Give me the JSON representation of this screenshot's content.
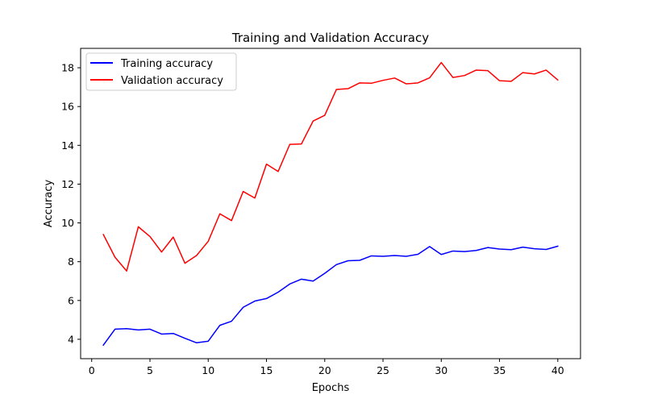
{
  "chart_data": {
    "type": "line",
    "title": "Training and Validation Accuracy",
    "xlabel": "Epochs",
    "ylabel": "Accuracy",
    "xlim": [
      -0.95,
      41.95
    ],
    "ylim": [
      3.0,
      19.0
    ],
    "xticks": [
      0,
      5,
      10,
      15,
      20,
      25,
      30,
      35,
      40
    ],
    "yticks": [
      4,
      6,
      8,
      10,
      12,
      14,
      16,
      18
    ],
    "grid": false,
    "legend_position": "top-left",
    "x": [
      1,
      2,
      3,
      4,
      5,
      6,
      7,
      8,
      9,
      10,
      11,
      12,
      13,
      14,
      15,
      16,
      17,
      18,
      19,
      20,
      21,
      22,
      23,
      24,
      25,
      26,
      27,
      28,
      29,
      30,
      31,
      32,
      33,
      34,
      35,
      36,
      37,
      38,
      39,
      40
    ],
    "series": [
      {
        "name": "Training accuracy",
        "color": "#0000ff",
        "values": [
          3.7,
          4.52,
          4.55,
          4.48,
          4.52,
          4.27,
          4.3,
          4.05,
          3.82,
          3.9,
          4.72,
          4.93,
          5.65,
          5.97,
          6.1,
          6.43,
          6.85,
          7.1,
          7.0,
          7.4,
          7.85,
          8.05,
          8.07,
          8.3,
          8.28,
          8.32,
          8.28,
          8.38,
          8.78,
          8.37,
          8.55,
          8.52,
          8.58,
          8.73,
          8.65,
          8.62,
          8.75,
          8.67,
          8.63,
          8.8
        ]
      },
      {
        "name": "Validation accuracy",
        "color": "#ff0000",
        "values": [
          9.4,
          8.23,
          7.52,
          9.8,
          9.3,
          8.5,
          9.27,
          7.92,
          8.32,
          9.05,
          10.47,
          10.12,
          11.62,
          11.28,
          13.03,
          12.65,
          14.05,
          14.07,
          15.25,
          15.55,
          16.88,
          16.92,
          17.22,
          17.2,
          17.35,
          17.47,
          17.17,
          17.22,
          17.48,
          18.27,
          17.5,
          17.6,
          17.88,
          17.85,
          17.33,
          17.3,
          17.75,
          17.68,
          17.88,
          17.37
        ]
      }
    ]
  }
}
